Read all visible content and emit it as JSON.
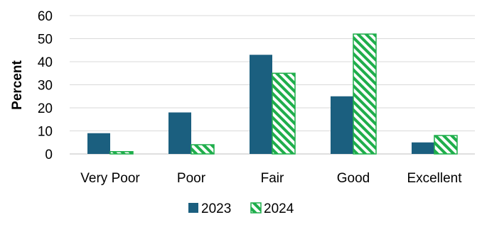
{
  "chart_data": {
    "type": "bar",
    "categories": [
      "Very Poor",
      "Poor",
      "Fair",
      "Good",
      "Excellent"
    ],
    "series": [
      {
        "name": "2023",
        "values": [
          9,
          18,
          43,
          25,
          5
        ],
        "color": "#1b5f7f",
        "pattern": "solid"
      },
      {
        "name": "2024",
        "values": [
          1,
          4,
          35,
          52,
          8
        ],
        "color": "#1fae4b",
        "pattern": "diagonal-hatch"
      }
    ],
    "title": "",
    "xlabel": "",
    "ylabel": "Percent",
    "ylim": [
      0,
      60
    ],
    "yticks": [
      0,
      10,
      20,
      30,
      40,
      50,
      60
    ],
    "grid": true,
    "legend_position": "bottom"
  }
}
